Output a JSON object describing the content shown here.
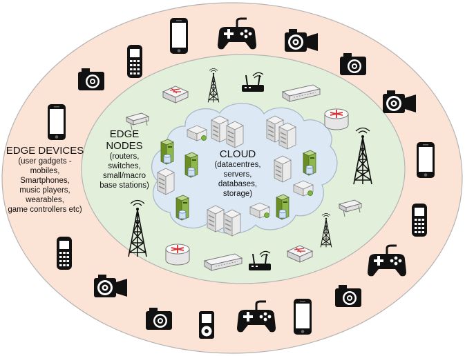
{
  "edge_devices": {
    "title": "EDGE DEVICES",
    "lines": [
      "(user gadgets -",
      "mobiles,",
      "Smartphones,",
      "music players,",
      "wearables,",
      "game controllers etc)"
    ]
  },
  "edge_nodes": {
    "title_1": "EDGE",
    "title_2": "NODES",
    "lines": [
      "(routers,",
      "switches,",
      "small/macro",
      "base stations)"
    ]
  },
  "cloud": {
    "title": "CLOUD",
    "lines": [
      "(datacentres,",
      "servers,",
      "databases,",
      "storage)"
    ]
  },
  "colors": {
    "outer_ring": "#fbe3d6",
    "middle_ring": "#e2efda",
    "cloud": "#dce9f5",
    "ring_stroke": "#b3b3b3"
  }
}
